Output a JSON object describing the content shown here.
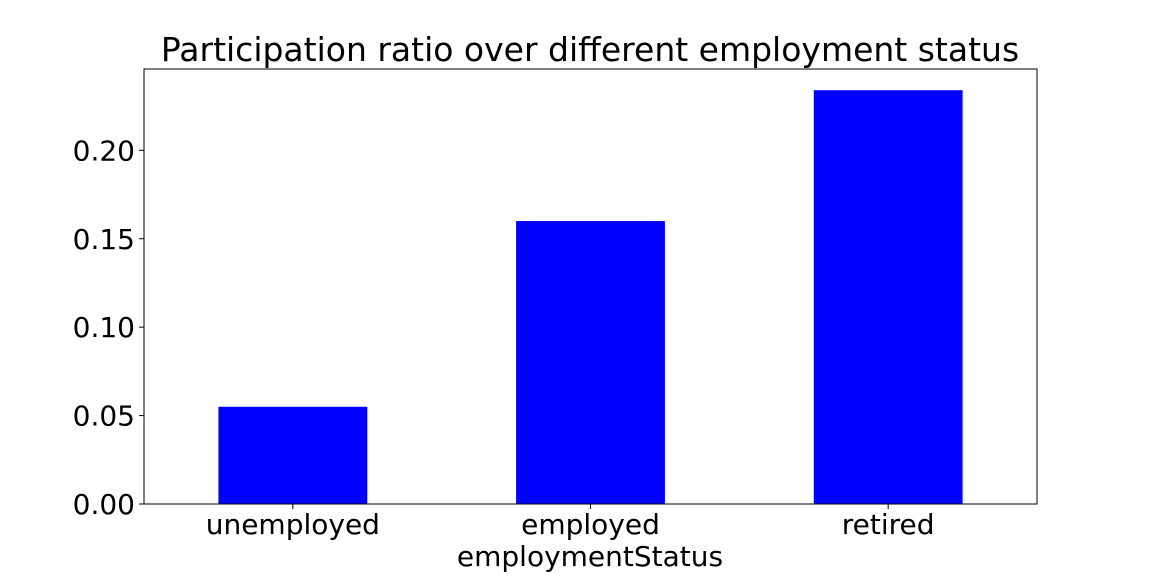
{
  "chart_data": {
    "type": "bar",
    "title": "Participation ratio over different employment status",
    "xlabel": "employmentStatus",
    "ylabel": "",
    "categories": [
      "unemployed",
      "employed",
      "retired"
    ],
    "values": [
      0.055,
      0.16,
      0.234
    ],
    "ylim": [
      0,
      0.246
    ],
    "yticks": [
      0.0,
      0.05,
      0.1,
      0.15,
      0.2
    ],
    "ytick_labels": [
      "0.00",
      "0.05",
      "0.10",
      "0.15",
      "0.20"
    ],
    "grid": false,
    "legend": "none",
    "bar_color": "#0000ff"
  }
}
